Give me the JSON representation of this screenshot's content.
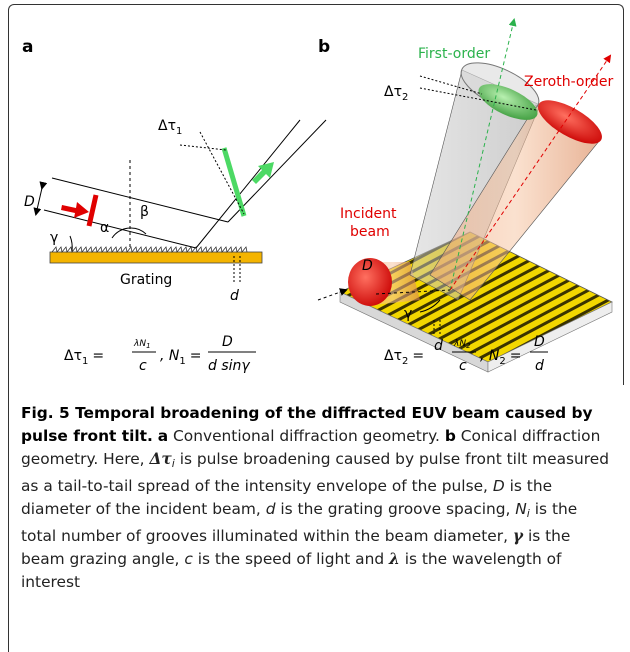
{
  "figure": {
    "panel_a": {
      "label": "a",
      "delta_label": "Δτ",
      "delta_sub": "1",
      "D": "D",
      "alpha": "α",
      "beta": "β",
      "gamma": "γ",
      "grating": "Grating",
      "d": "d",
      "formula": {
        "lhs": "Δτ",
        "lhs_sub": "1",
        "eq": "=",
        "num1": "λN",
        "num1_sub": "1",
        "den1": "c",
        "sep": ", N",
        "sep_sub": "1",
        "num2": "D",
        "den2": "d sinγ"
      }
    },
    "panel_b": {
      "label": "b",
      "first_order": "First-order",
      "zeroth_order": "Zeroth-order",
      "delta_label": "Δτ",
      "delta_sub": "2",
      "incident": [
        "Incident",
        "beam"
      ],
      "D": "D",
      "gamma": "γ",
      "d": "d",
      "formula": {
        "lhs": "Δτ",
        "lhs_sub": "2",
        "eq": "=",
        "num1": "λN",
        "num1_sub": "2",
        "den1": "c",
        "sep": ", N",
        "sep_sub": "2",
        "num2": "D",
        "den2": "d"
      }
    }
  },
  "caption": {
    "segments": [
      "Fig. 5 Temporal broadening of the diffracted EUV beam caused by pulse front tilt.",
      "a",
      " Conventional diffraction geometry.",
      "b",
      " Conical diffraction geometry. Here, ",
      "Δτ",
      "i",
      " is pulse broadening caused by pulse front tilt measured as a tail-to-tail spread of the intensity envelope of the pulse, ",
      "D",
      " is the diameter of the incident beam, ",
      "d",
      " is the grating groove spacing, ",
      "N",
      "i",
      " is the total number of grooves illuminated within the beam diameter, ",
      "γ",
      " is the beam grazing angle, ",
      "c",
      " is the speed of light and ",
      "λ",
      " is the wavelength of interest"
    ]
  }
}
